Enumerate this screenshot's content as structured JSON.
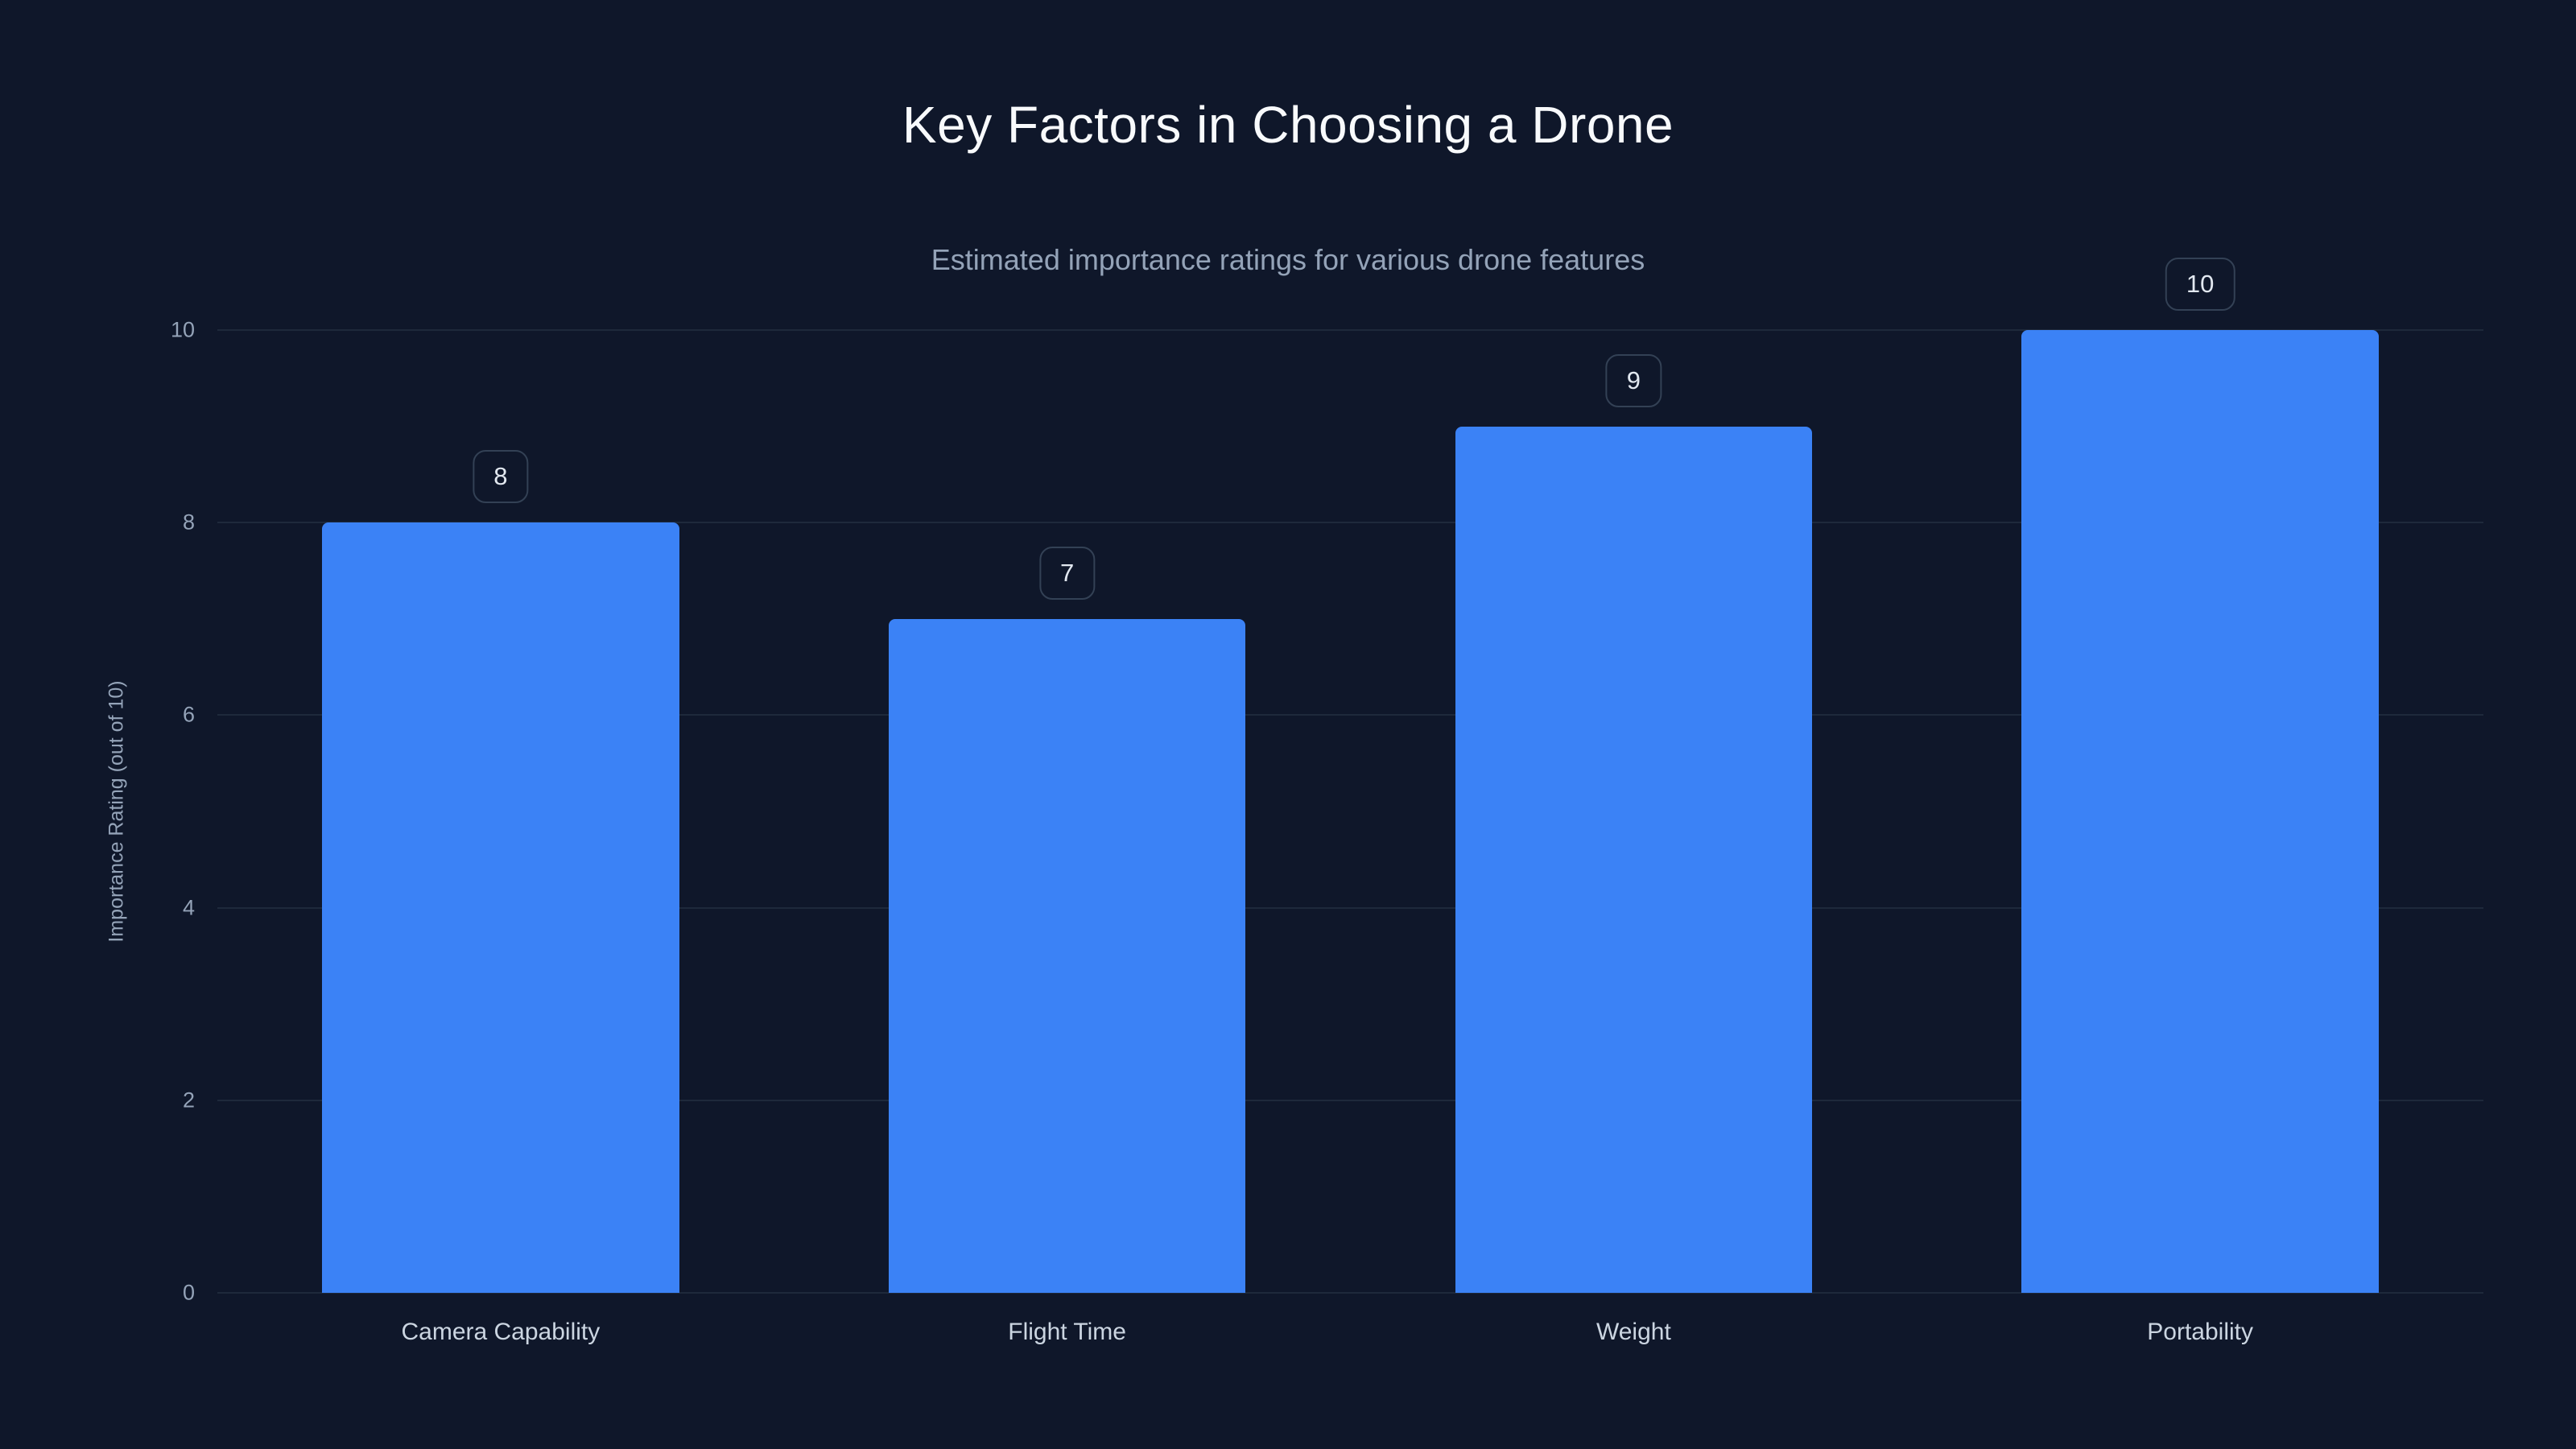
{
  "chart_data": {
    "type": "bar",
    "title": "Key Factors in Choosing a Drone",
    "subtitle": "Estimated importance ratings for various drone features",
    "categories": [
      "Camera Capability",
      "Flight Time",
      "Weight",
      "Portability"
    ],
    "values": [
      8,
      7,
      9,
      10
    ],
    "xlabel": "",
    "ylabel": "Importance Rating (out of 10)",
    "ylim": [
      0,
      10
    ],
    "yticks": [
      0,
      2,
      4,
      6,
      8,
      10
    ],
    "grid": true,
    "legend": false,
    "value_labels_shown": true,
    "colors": {
      "background": "#0f172a",
      "bar": "#3b82f6",
      "gridline": "#1e293b",
      "title_text": "#f8fafc",
      "subtitle_text": "#94a3b8",
      "tick_text": "#94a3b8",
      "category_text": "#cbd5e1",
      "badge_border": "#334155",
      "badge_text": "#e2e8f0"
    }
  }
}
